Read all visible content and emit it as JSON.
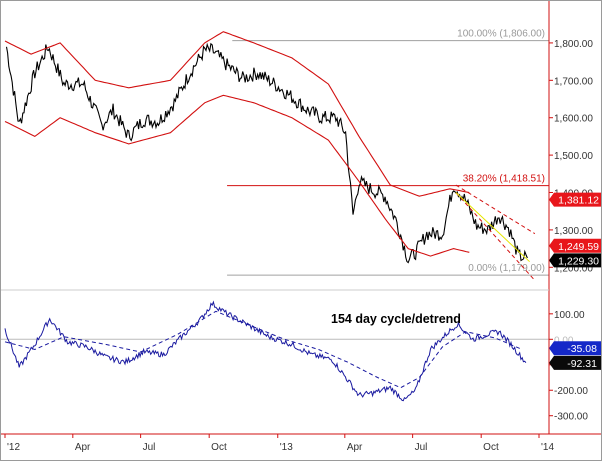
{
  "chart_data": [
    {
      "type": "line",
      "title": "",
      "xlabel": "",
      "ylabel": "",
      "x_ticks": [
        "'12",
        "Apr",
        "Jul",
        "Oct",
        "'13",
        "Apr",
        "Jul",
        "Oct",
        "'14"
      ],
      "ylim": [
        1150,
        1880
      ],
      "y_ticks": [
        1200,
        1300,
        1400,
        1500,
        1600,
        1700,
        1800
      ],
      "y_tick_labels": [
        "1,200.00",
        "1,300.00",
        "1,400.00",
        "1,500.00",
        "1,600.00",
        "1,700.00",
        "1,800.00"
      ],
      "series": [
        {
          "name": "",
          "color": "#000000",
          "x": [
            "2012-01-03",
            "2012-01-20",
            "2012-02-10",
            "2012-02-28",
            "2012-03-20",
            "2012-04-15",
            "2012-05-10",
            "2012-05-25",
            "2012-06-15",
            "2012-07-05",
            "2012-07-25",
            "2012-08-15",
            "2012-09-05",
            "2012-09-25",
            "2012-10-05",
            "2012-10-25",
            "2012-11-15",
            "2012-12-05",
            "2012-12-28",
            "2013-01-20",
            "2013-02-10",
            "2013-03-01",
            "2013-03-20",
            "2013-04-02",
            "2013-04-12",
            "2013-04-20",
            "2013-05-05",
            "2013-05-25",
            "2013-06-10",
            "2013-06-25",
            "2013-07-05",
            "2013-07-20",
            "2013-08-10",
            "2013-08-25",
            "2013-09-10",
            "2013-09-25",
            "2013-10-10",
            "2013-10-25",
            "2013-11-08",
            "2013-11-20",
            "2013-12-02"
          ],
          "values": [
            1790,
            1580,
            1720,
            1790,
            1690,
            1690,
            1580,
            1620,
            1550,
            1595,
            1590,
            1640,
            1720,
            1780,
            1780,
            1740,
            1705,
            1720,
            1690,
            1655,
            1620,
            1600,
            1600,
            1560,
            1340,
            1430,
            1410,
            1390,
            1320,
            1220,
            1240,
            1290,
            1290,
            1420,
            1380,
            1310,
            1300,
            1340,
            1300,
            1230,
            1225
          ]
        },
        {
          "name": "",
          "color": "#d21010",
          "x": [
            "2012-01-01",
            "2012-02-05",
            "2012-03-15",
            "2012-05-01",
            "2012-06-15",
            "2012-08-10",
            "2012-09-25",
            "2012-10-20",
            "2012-11-30",
            "2013-01-20",
            "2013-03-10",
            "2013-04-20",
            "2013-06-01",
            "2013-07-10",
            "2013-08-20",
            "2013-09-15"
          ],
          "values": [
            1805,
            1770,
            1800,
            1700,
            1680,
            1700,
            1800,
            1830,
            1800,
            1760,
            1690,
            1550,
            1420,
            1390,
            1410,
            1400
          ]
        },
        {
          "name": "",
          "color": "#d21010",
          "x": [
            "2012-01-01",
            "2012-02-10",
            "2012-03-15",
            "2012-05-01",
            "2012-06-15",
            "2012-08-10",
            "2012-09-25",
            "2012-10-20",
            "2012-11-30",
            "2013-01-20",
            "2013-03-10",
            "2013-04-20",
            "2013-05-25",
            "2013-06-25",
            "2013-07-25",
            "2013-08-25",
            "2013-09-15"
          ],
          "values": [
            1590,
            1550,
            1600,
            1560,
            1530,
            1560,
            1640,
            1660,
            1640,
            1600,
            1540,
            1430,
            1330,
            1250,
            1230,
            1250,
            1240
          ]
        }
      ],
      "levels": [
        {
          "value": 1806.0,
          "label": "100.00% (1,806.00)"
        },
        {
          "value": 1418.51,
          "label": "38.20% (1,418.51)"
        },
        {
          "value": 1179.0,
          "label": "0.00% (1,179.00)"
        }
      ],
      "trendlines": [
        {
          "color": "#d21010",
          "style": "dashed",
          "from": [
            "2013-08-28",
            1420
          ],
          "to": [
            "2013-12-12",
            1290
          ]
        },
        {
          "color": "#d21010",
          "style": "dashed",
          "from": [
            "2013-08-28",
            1400
          ],
          "to": [
            "2013-12-12",
            1165
          ]
        },
        {
          "color": "#e6e600",
          "style": "solid",
          "from": [
            "2013-08-28",
            1400
          ],
          "to": [
            "2013-12-05",
            1215
          ]
        }
      ],
      "value_tags": [
        {
          "label": "1,381.12",
          "value": 1381.12,
          "background": "#e8161b",
          "text_color": "#ffffff"
        },
        {
          "label": "1,249.59",
          "value": 1249.59,
          "background": "#e8161b",
          "text_color": "#ffffff"
        },
        {
          "label": "1,229.30",
          "value": 1229.3,
          "background": "#000000",
          "text_color": "#ffffff"
        }
      ],
      "legend": "none",
      "grid": false
    },
    {
      "type": "line",
      "annotation": "154 day cycle/detrend",
      "ylim": [
        -360,
        170
      ],
      "y_ticks": [
        100,
        0,
        -100,
        -200,
        -300
      ],
      "y_tick_labels": [
        "100.00",
        "0.00",
        "-100.00",
        "-200.00",
        "-300.00"
      ],
      "zero_line": 0,
      "series": [
        {
          "name": "",
          "color": "#1a1aa0",
          "x": [
            "2012-01-01",
            "2012-01-20",
            "2012-02-10",
            "2012-03-01",
            "2012-03-25",
            "2012-04-20",
            "2012-05-15",
            "2012-06-10",
            "2012-07-05",
            "2012-08-01",
            "2012-08-25",
            "2012-09-20",
            "2012-10-05",
            "2012-10-25",
            "2012-11-20",
            "2012-12-20",
            "2013-01-20",
            "2013-02-15",
            "2013-03-15",
            "2013-04-05",
            "2013-04-20",
            "2013-05-10",
            "2013-06-01",
            "2013-06-20",
            "2013-07-05",
            "2013-07-25",
            "2013-08-15",
            "2013-08-30",
            "2013-09-20",
            "2013-10-10",
            "2013-10-25",
            "2013-11-10",
            "2013-11-30"
          ],
          "values": [
            40,
            -110,
            -20,
            80,
            -10,
            -30,
            -70,
            -90,
            -50,
            -60,
            10,
            80,
            140,
            100,
            60,
            10,
            -20,
            -60,
            -80,
            -160,
            -220,
            -210,
            -190,
            -240,
            -200,
            -40,
            20,
            60,
            0,
            20,
            30,
            -20,
            -92
          ]
        },
        {
          "name": "",
          "color": "#1a1aa0",
          "style": "dashed",
          "x": [
            "2012-01-01",
            "2012-02-10",
            "2012-03-20",
            "2012-05-15",
            "2012-07-01",
            "2012-08-20",
            "2012-10-10",
            "2012-11-20",
            "2013-01-10",
            "2013-02-25",
            "2013-04-05",
            "2013-05-15",
            "2013-06-15",
            "2013-07-10",
            "2013-08-10",
            "2013-09-10",
            "2013-10-20",
            "2013-11-25"
          ],
          "values": [
            -10,
            -40,
            10,
            -20,
            -50,
            20,
            110,
            60,
            0,
            -40,
            -90,
            -150,
            -190,
            -150,
            -30,
            30,
            5,
            -40
          ]
        }
      ],
      "value_tags": [
        {
          "label": "-35.08",
          "value": -35.08,
          "background": "#1428c8",
          "text_color": "#ffffff"
        },
        {
          "label": "-92.31",
          "value": -92.31,
          "background": "#0a0a0a",
          "text_color": "#ffffff"
        }
      ],
      "legend": "none",
      "grid": false
    }
  ]
}
